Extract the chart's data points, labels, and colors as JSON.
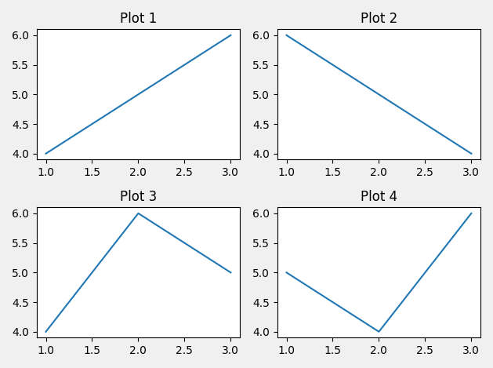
{
  "plots": [
    {
      "title": "Plot 1",
      "x": [
        1,
        2,
        3
      ],
      "y": [
        4,
        5,
        6
      ]
    },
    {
      "title": "Plot 2",
      "x": [
        1,
        2,
        3
      ],
      "y": [
        6,
        5,
        4
      ]
    },
    {
      "title": "Plot 3",
      "x": [
        1,
        2,
        3
      ],
      "y": [
        4,
        6,
        5
      ]
    },
    {
      "title": "Plot 4",
      "x": [
        1,
        2,
        3
      ],
      "y": [
        5,
        4,
        6
      ]
    }
  ],
  "line_color": "#1f77b4",
  "nrows": 2,
  "ncols": 2,
  "figsize": [
    6.29,
    4.69
  ],
  "dpi": 100,
  "fig_facecolor": "#f0f0f0"
}
